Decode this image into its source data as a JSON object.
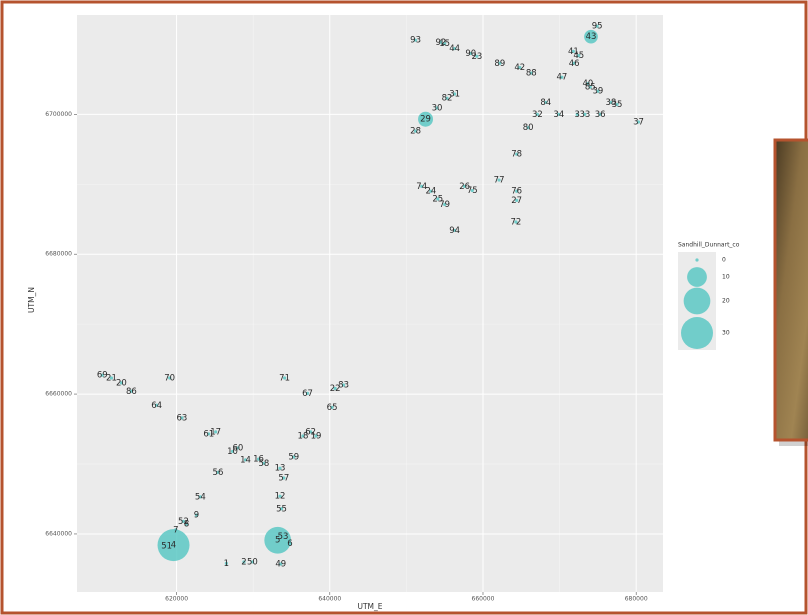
{
  "chart_data": {
    "type": "bubble",
    "xlabel": "UTM_E",
    "ylabel": "UTM_N",
    "xlim": [
      607000,
      683500
    ],
    "ylim": [
      6631700,
      6714200
    ],
    "xticks": [
      620000,
      640000,
      660000,
      680000
    ],
    "yticks": [
      6640000,
      6660000,
      6680000,
      6700000
    ],
    "grid": true,
    "color": "#5cc8c4",
    "labels": [
      "95",
      "43",
      "93",
      "92",
      "15",
      "44",
      "90",
      "23",
      "89",
      "42",
      "88",
      "41",
      "45",
      "46",
      "47",
      "40",
      "85",
      "39",
      "38",
      "35",
      "37",
      "84",
      "32",
      "34",
      "3",
      "33",
      "36",
      "80",
      "82",
      "31",
      "30",
      "29",
      "28",
      "78",
      "77",
      "74",
      "24",
      "26",
      "75",
      "76",
      "25",
      "79",
      "27",
      "72",
      "94",
      "69",
      "21",
      "20",
      "86",
      "70",
      "64",
      "63",
      "71",
      "67",
      "22",
      "83",
      "65",
      "61",
      "17",
      "62",
      "18",
      "19",
      "60",
      "10",
      "14",
      "16",
      "58",
      "59",
      "13",
      "57",
      "56",
      "54",
      "12",
      "55",
      "9",
      "52",
      "8",
      "7",
      "51",
      "4",
      "53",
      "5",
      "6",
      "1",
      "2",
      "50",
      "49"
    ],
    "x": [
      674900,
      674100,
      651200,
      654500,
      655000,
      656300,
      658400,
      659200,
      662200,
      664800,
      666300,
      671800,
      672500,
      671900,
      670300,
      673700,
      674000,
      675000,
      676700,
      677500,
      680300,
      668200,
      667100,
      669900,
      672300,
      673300,
      675300,
      665900,
      655300,
      656300,
      654000,
      652500,
      651200,
      664400,
      662100,
      652000,
      653200,
      657600,
      658600,
      664400,
      654100,
      655000,
      664400,
      664300,
      656300,
      610300,
      611500,
      612800,
      614100,
      619100,
      617400,
      620700,
      634100,
      637100,
      640700,
      641800,
      640300,
      624200,
      625100,
      637500,
      636500,
      638200,
      628000,
      627300,
      629000,
      630700,
      631400,
      635300,
      633500,
      634000,
      625400,
      623100,
      633500,
      633700,
      622600,
      620900,
      621300,
      619900,
      618700,
      619600,
      633900,
      633200,
      634800,
      626500,
      628800,
      629900,
      633600
    ],
    "values": [
      6712600,
      6711100,
      6710600,
      6710300,
      6710100,
      6709400,
      6708700,
      6708300,
      6707300,
      6706700,
      6705900,
      6709000,
      6708400,
      6707300,
      6705300,
      6704400,
      6703900,
      6703300,
      6701700,
      6701400,
      6698900,
      6701700,
      6700000,
      6700000,
      6700000,
      6700000,
      6700000,
      6698100,
      6702300,
      6702900,
      6700900,
      6699300,
      6697600,
      6694300,
      6690600,
      6689700,
      6689000,
      6689700,
      6689100,
      6689000,
      6687900,
      6687100,
      6687700,
      6684600,
      6683400,
      6662700,
      6662300,
      6661600,
      6660400,
      6662300,
      6658400,
      6656600,
      6662300,
      6660100,
      6660800,
      6661300,
      6658100,
      6654300,
      6654600,
      6654600,
      6654000,
      6654000,
      6652300,
      6651800,
      6650600,
      6650700,
      6650100,
      6651000,
      6649400,
      6648000,
      6648800,
      6645300,
      6645400,
      6643600,
      6642700,
      6641800,
      6641400,
      6640600,
      6638300,
      6638400,
      6639600,
      6639100,
      6638600,
      6635800,
      6636000,
      6636000,
      6635700
    ],
    "sizes": [
      0,
      4,
      0,
      0,
      0,
      0,
      0,
      0,
      0,
      0,
      0,
      0,
      0,
      0,
      0,
      0,
      0,
      0,
      0,
      0,
      0,
      0,
      0,
      0,
      0,
      0,
      0,
      0,
      0,
      0,
      0,
      5,
      0,
      0,
      0,
      0,
      0,
      0,
      0,
      0,
      0,
      0,
      0,
      0,
      0,
      0,
      0,
      0,
      0,
      0,
      0,
      0,
      0,
      0,
      0,
      0,
      0,
      0,
      0,
      0,
      0,
      0,
      0,
      0,
      0,
      0,
      0,
      0,
      0,
      0,
      0,
      0,
      0,
      0,
      0,
      0,
      0,
      0,
      0,
      30,
      0,
      20,
      0,
      0,
      0,
      0,
      0
    ],
    "size_legend": {
      "title": "Sandhill_Dunnart_co",
      "values": [
        0,
        10,
        20,
        30
      ]
    }
  }
}
